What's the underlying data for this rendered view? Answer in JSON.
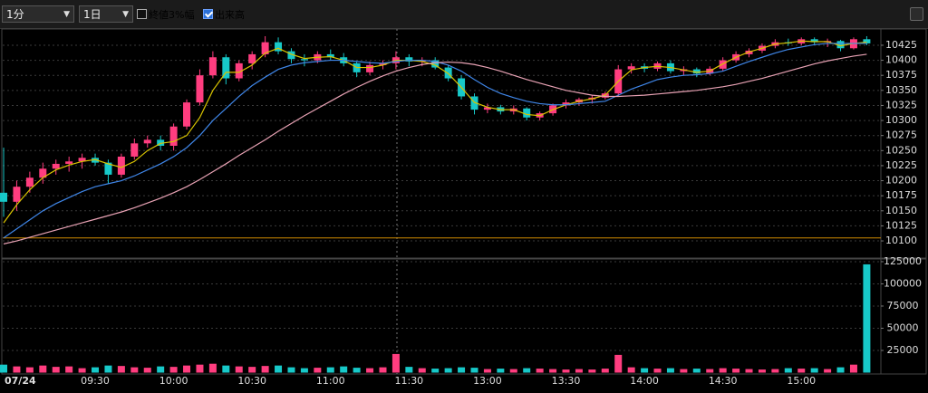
{
  "toolbar": {
    "interval": "1分",
    "range": "1日",
    "options": [
      {
        "label": "終値3%幅",
        "checked": false
      },
      {
        "label": "出来高",
        "checked": true
      }
    ]
  },
  "chart_data": [
    {
      "type": "candlestick",
      "up_color": "#ff3d7f",
      "down_color": "#17c9c9",
      "categories": [
        "07/24",
        null,
        null,
        null,
        null,
        null,
        null,
        "09:30",
        null,
        null,
        null,
        null,
        null,
        "10:00",
        null,
        null,
        null,
        null,
        null,
        "10:30",
        null,
        null,
        null,
        null,
        null,
        "11:00",
        null,
        null,
        null,
        null,
        null,
        "11:30",
        null,
        null,
        null,
        null,
        null,
        "13:00",
        null,
        null,
        null,
        null,
        null,
        "13:30",
        null,
        null,
        null,
        null,
        null,
        "14:00",
        null,
        null,
        null,
        null,
        null,
        "14:30",
        null,
        null,
        null,
        null,
        null,
        "15:00",
        null,
        null,
        null,
        null,
        null
      ],
      "open": [
        10180,
        10165,
        10190,
        10205,
        10220,
        10228,
        10232,
        10238,
        10230,
        10210,
        10240,
        10262,
        10268,
        10258,
        10290,
        10330,
        10375,
        10405,
        10370,
        10395,
        10410,
        10430,
        10415,
        10402,
        10400,
        10410,
        10405,
        10395,
        10380,
        10392,
        10395,
        10405,
        10398,
        10400,
        10388,
        10370,
        10340,
        10318,
        10322,
        10315,
        10320,
        10305,
        10312,
        10325,
        10330,
        10335,
        10338,
        10345,
        10385,
        10390,
        10386,
        10395,
        10382,
        10385,
        10378,
        10386,
        10400,
        10410,
        10416,
        10424,
        10430,
        10428,
        10435,
        10430,
        10432,
        10420,
        10435
      ],
      "high": [
        10255,
        10200,
        10215,
        10230,
        10235,
        10240,
        10245,
        10245,
        10235,
        10245,
        10270,
        10275,
        10275,
        10295,
        10335,
        10385,
        10415,
        10410,
        10400,
        10415,
        10440,
        10438,
        10420,
        10410,
        10415,
        10418,
        10412,
        10398,
        10398,
        10400,
        10415,
        10410,
        10405,
        10405,
        10392,
        10375,
        10345,
        10328,
        10326,
        10325,
        10322,
        10315,
        10328,
        10335,
        10338,
        10342,
        10348,
        10392,
        10395,
        10395,
        10398,
        10400,
        10390,
        10388,
        10390,
        10405,
        10415,
        10420,
        10428,
        10435,
        10436,
        10438,
        10438,
        10436,
        10434,
        10438,
        10440
      ],
      "low": [
        10140,
        10150,
        10180,
        10195,
        10210,
        10215,
        10220,
        10225,
        10195,
        10205,
        10235,
        10255,
        10250,
        10250,
        10285,
        10325,
        10370,
        10360,
        10365,
        10385,
        10405,
        10410,
        10395,
        10390,
        10395,
        10400,
        10390,
        10372,
        10375,
        10385,
        10385,
        10390,
        10390,
        10385,
        10365,
        10335,
        10310,
        10312,
        10310,
        10310,
        10300,
        10300,
        10308,
        10320,
        10325,
        10328,
        10335,
        10340,
        10378,
        10380,
        10382,
        10378,
        10375,
        10372,
        10375,
        10382,
        10396,
        10405,
        10412,
        10420,
        10424,
        10425,
        10425,
        10422,
        10415,
        10418,
        10425
      ],
      "close": [
        10165,
        10190,
        10205,
        10220,
        10228,
        10232,
        10238,
        10230,
        10210,
        10240,
        10262,
        10268,
        10258,
        10290,
        10330,
        10375,
        10405,
        10370,
        10395,
        10410,
        10430,
        10415,
        10402,
        10400,
        10410,
        10405,
        10395,
        10380,
        10392,
        10395,
        10405,
        10398,
        10400,
        10388,
        10370,
        10340,
        10318,
        10322,
        10315,
        10320,
        10305,
        10312,
        10325,
        10330,
        10335,
        10338,
        10345,
        10385,
        10390,
        10386,
        10395,
        10382,
        10385,
        10378,
        10386,
        10400,
        10410,
        10416,
        10424,
        10430,
        10428,
        10435,
        10430,
        10432,
        10420,
        10435,
        10428
      ],
      "series": [
        {
          "color": "#d9c400",
          "values": [
            10130,
            10160,
            10185,
            10205,
            10218,
            10226,
            10232,
            10235,
            10228,
            10222,
            10232,
            10250,
            10262,
            10265,
            10275,
            10305,
            10350,
            10380,
            10380,
            10392,
            10412,
            10420,
            10410,
            10403,
            10405,
            10406,
            10400,
            10388,
            10388,
            10392,
            10400,
            10400,
            10398,
            10392,
            10378,
            10355,
            10330,
            10322,
            10318,
            10318,
            10310,
            10308,
            10318,
            10326,
            10332,
            10336,
            10342,
            10365,
            10384,
            10388,
            10390,
            10388,
            10384,
            10380,
            10382,
            10394,
            10405,
            10414,
            10420,
            10427,
            10429,
            10432,
            10431,
            10431,
            10424,
            10428,
            10430
          ]
        },
        {
          "color": "#3f86e8",
          "values": [
            10105,
            10120,
            10135,
            10150,
            10162,
            10172,
            10182,
            10190,
            10195,
            10200,
            10208,
            10218,
            10228,
            10240,
            10255,
            10275,
            10300,
            10320,
            10340,
            10358,
            10372,
            10385,
            10392,
            10396,
            10398,
            10400,
            10400,
            10398,
            10396,
            10395,
            10398,
            10400,
            10400,
            10398,
            10392,
            10382,
            10368,
            10355,
            10345,
            10338,
            10332,
            10328,
            10326,
            10326,
            10328,
            10330,
            10332,
            10342,
            10352,
            10360,
            10368,
            10372,
            10375,
            10376,
            10378,
            10382,
            10390,
            10398,
            10405,
            10412,
            10418,
            10422,
            10426,
            10428,
            10428,
            10428,
            10428
          ]
        },
        {
          "color": "#e8a2b4",
          "values": [
            10095,
            10100,
            10106,
            10112,
            10118,
            10124,
            10130,
            10136,
            10142,
            10148,
            10155,
            10163,
            10171,
            10180,
            10190,
            10202,
            10215,
            10228,
            10242,
            10255,
            10268,
            10282,
            10295,
            10308,
            10320,
            10332,
            10344,
            10355,
            10365,
            10374,
            10382,
            10388,
            10393,
            10396,
            10397,
            10396,
            10393,
            10388,
            10382,
            10375,
            10368,
            10362,
            10356,
            10350,
            10346,
            10342,
            10340,
            10340,
            10341,
            10342,
            10344,
            10346,
            10348,
            10350,
            10353,
            10356,
            10360,
            10365,
            10370,
            10376,
            10382,
            10388,
            10394,
            10399,
            10403,
            10407,
            10410
          ]
        }
      ],
      "reference_line": 10105,
      "reference_color": "#d08a00",
      "ylim": [
        10073,
        10452
      ],
      "yticks": [
        10100,
        10125,
        10150,
        10175,
        10200,
        10225,
        10250,
        10275,
        10300,
        10325,
        10350,
        10375,
        10400,
        10425
      ],
      "grid": true
    },
    {
      "type": "bar",
      "values": [
        9000,
        7000,
        6000,
        8000,
        6500,
        7000,
        5000,
        6000,
        8000,
        7500,
        6000,
        5500,
        7000,
        6500,
        8000,
        9000,
        10000,
        8000,
        7000,
        6500,
        7500,
        8000,
        6000,
        5000,
        5500,
        6000,
        7000,
        5500,
        5000,
        6000,
        21000,
        6500,
        5000,
        4500,
        5000,
        6000,
        5500,
        4000,
        4500,
        4000,
        5000,
        4500,
        4000,
        3500,
        4000,
        3500,
        4500,
        20000,
        6000,
        5000,
        4500,
        5000,
        4000,
        4500,
        4000,
        5000,
        4500,
        4000,
        3500,
        4000,
        5000,
        4500,
        5000,
        4000,
        6000,
        9000,
        122000
      ],
      "ylim": [
        0,
        127000
      ],
      "yticks": [
        25000,
        50000,
        75000,
        100000,
        125000
      ],
      "grid": true
    }
  ]
}
